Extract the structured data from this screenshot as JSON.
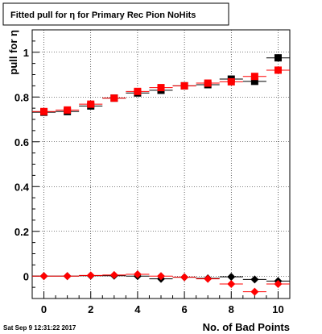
{
  "chart_data": {
    "type": "scatter",
    "title": "Fitted pull for  η for Primary Rec Pion NoHits",
    "xlabel": "No. of Bad Points",
    "ylabel": "pull for  η",
    "timestamp": "Sat Sep  9 12:31:22 2017",
    "xlim": [
      -0.5,
      10.5
    ],
    "ylim": [
      -0.1,
      1.1
    ],
    "grid": true,
    "x_ticks": [
      0,
      2,
      4,
      6,
      8,
      10
    ],
    "y_ticks": [
      0,
      0.2,
      0.4,
      0.6,
      0.8,
      1
    ],
    "x_tick_labels": [
      "0",
      "2",
      "4",
      "6",
      "8",
      "10"
    ],
    "y_tick_labels": [
      "0",
      "0.2",
      "0.4",
      "0.6",
      "0.8",
      "1"
    ],
    "colors": {
      "black": "#000000",
      "red": "#ff0000"
    },
    "series": [
      {
        "color": "#000000",
        "marker": "square",
        "x": [
          0,
          1,
          2,
          3,
          4,
          5,
          6,
          7,
          8,
          9,
          10
        ],
        "y": [
          0.732,
          0.735,
          0.76,
          0.795,
          0.818,
          0.83,
          0.85,
          0.855,
          0.88,
          0.87,
          0.975
        ],
        "yerr": [
          0.004,
          0.004,
          0.005,
          0.005,
          0.006,
          0.006,
          0.007,
          0.007,
          0.008,
          0.009,
          0.01
        ]
      },
      {
        "color": "#ff0000",
        "marker": "square",
        "x": [
          0,
          1,
          2,
          3,
          4,
          5,
          6,
          7,
          8,
          9,
          10
        ],
        "y": [
          0.735,
          0.742,
          0.768,
          0.795,
          0.825,
          0.842,
          0.85,
          0.862,
          0.868,
          0.892,
          0.92
        ],
        "yerr": [
          0.004,
          0.004,
          0.005,
          0.005,
          0.006,
          0.006,
          0.007,
          0.007,
          0.008,
          0.009,
          0.01
        ]
      },
      {
        "color": "#000000",
        "marker": "diamond",
        "x": [
          0,
          1,
          2,
          3,
          4,
          5,
          6,
          7,
          8,
          9,
          10
        ],
        "y": [
          0.0,
          0.0,
          0.002,
          0.002,
          0.0,
          -0.012,
          -0.005,
          -0.01,
          -0.003,
          -0.015,
          -0.022
        ],
        "yerr": [
          0.004,
          0.004,
          0.004,
          0.005,
          0.005,
          0.005,
          0.006,
          0.006,
          0.006,
          0.007,
          0.008
        ]
      },
      {
        "color": "#ff0000",
        "marker": "diamond",
        "x": [
          0,
          1,
          2,
          3,
          4,
          5,
          6,
          7,
          8,
          9,
          10
        ],
        "y": [
          0.0,
          0.0,
          0.003,
          0.005,
          0.008,
          0.0,
          -0.005,
          -0.012,
          -0.035,
          -0.07,
          -0.035
        ],
        "yerr": [
          0.004,
          0.004,
          0.004,
          0.005,
          0.005,
          0.005,
          0.006,
          0.006,
          0.006,
          0.007,
          0.008
        ]
      }
    ]
  }
}
